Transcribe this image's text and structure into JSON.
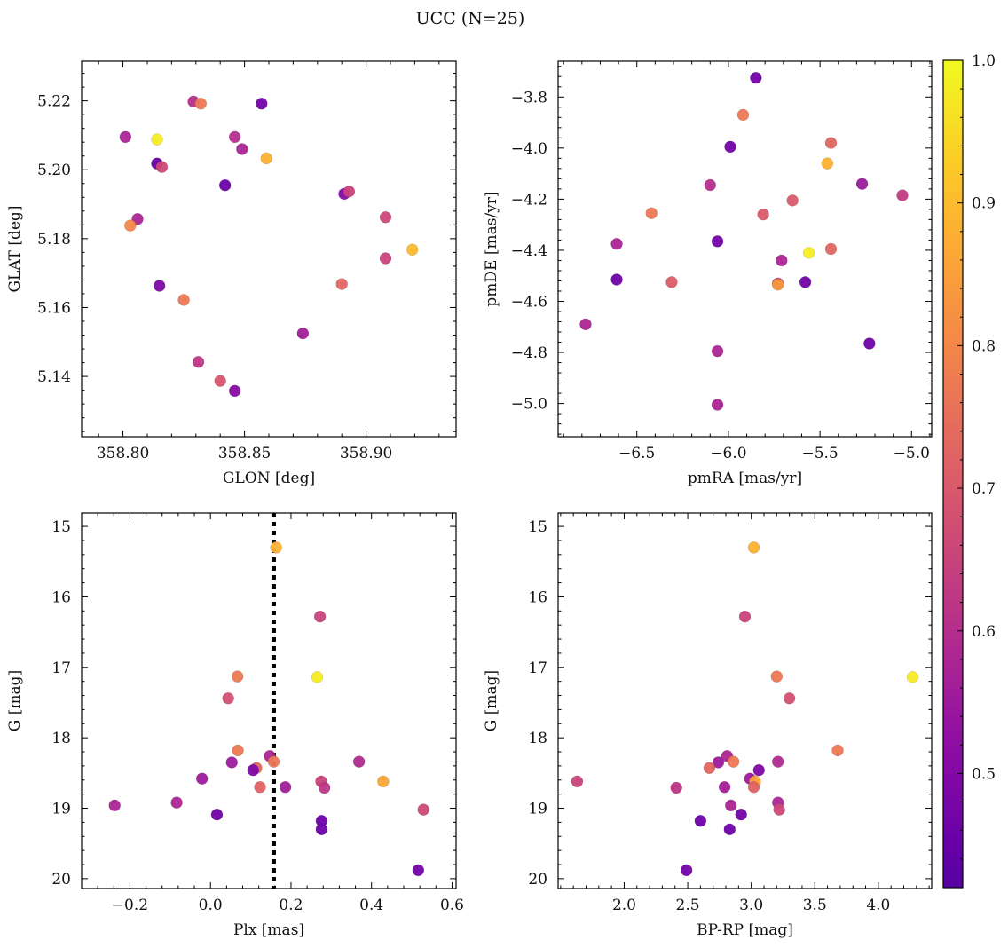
{
  "figure": {
    "title": "UCC (N=25)"
  },
  "chart_data": [
    {
      "type": "scatter",
      "name": "glon-glat",
      "xlabel": "GLON [deg]",
      "ylabel": "GLAT [deg]",
      "xlim": [
        358.783,
        358.937
      ],
      "ylim": [
        5.1225,
        5.2315
      ],
      "xticks": [
        358.8,
        358.85,
        358.9
      ],
      "xtick_labels": [
        "358.80",
        "358.85",
        "358.90"
      ],
      "yticks": [
        5.14,
        5.16,
        5.18,
        5.2,
        5.22
      ],
      "ytick_labels": [
        "5.14",
        "5.16",
        "5.18",
        "5.20",
        "5.22"
      ],
      "invert_y": false,
      "points": [
        {
          "x": 358.801,
          "y": 5.2095,
          "c": 0.58
        },
        {
          "x": 358.814,
          "y": 5.2088,
          "c": 0.98
        },
        {
          "x": 358.814,
          "y": 5.2018,
          "c": 0.45
        },
        {
          "x": 358.816,
          "y": 5.2008,
          "c": 0.66
        },
        {
          "x": 358.829,
          "y": 5.2198,
          "c": 0.6
        },
        {
          "x": 358.832,
          "y": 5.2192,
          "c": 0.77
        },
        {
          "x": 358.846,
          "y": 5.2095,
          "c": 0.6
        },
        {
          "x": 358.849,
          "y": 5.206,
          "c": 0.58
        },
        {
          "x": 358.857,
          "y": 5.2192,
          "c": 0.47
        },
        {
          "x": 358.859,
          "y": 5.2033,
          "c": 0.88
        },
        {
          "x": 358.842,
          "y": 5.1955,
          "c": 0.46
        },
        {
          "x": 358.891,
          "y": 5.193,
          "c": 0.51
        },
        {
          "x": 358.893,
          "y": 5.1937,
          "c": 0.65
        },
        {
          "x": 358.806,
          "y": 5.1857,
          "c": 0.58
        },
        {
          "x": 358.803,
          "y": 5.1838,
          "c": 0.8
        },
        {
          "x": 358.908,
          "y": 5.1862,
          "c": 0.66
        },
        {
          "x": 358.919,
          "y": 5.1768,
          "c": 0.9
        },
        {
          "x": 358.908,
          "y": 5.1743,
          "c": 0.65
        },
        {
          "x": 358.815,
          "y": 5.1663,
          "c": 0.49
        },
        {
          "x": 358.89,
          "y": 5.1668,
          "c": 0.73
        },
        {
          "x": 358.825,
          "y": 5.1622,
          "c": 0.77
        },
        {
          "x": 358.874,
          "y": 5.1525,
          "c": 0.56
        },
        {
          "x": 358.831,
          "y": 5.1442,
          "c": 0.62
        },
        {
          "x": 358.84,
          "y": 5.1387,
          "c": 0.69
        },
        {
          "x": 358.846,
          "y": 5.1358,
          "c": 0.51
        }
      ]
    },
    {
      "type": "scatter",
      "name": "pmra-pmde",
      "xlabel": "pmRA [mas/yr]",
      "ylabel": "pmDE [mas/yr]",
      "xlim": [
        -6.93,
        -4.89
      ],
      "ylim": [
        -5.13,
        -3.66
      ],
      "xticks": [
        -6.5,
        -6.0,
        -5.5,
        -5.0
      ],
      "xtick_labels": [
        "−6.5",
        "−6.0",
        "−5.5",
        "−5.0"
      ],
      "yticks": [
        -5.0,
        -4.8,
        -4.6,
        -4.4,
        -4.2,
        -4.0,
        -3.8
      ],
      "ytick_labels": [
        "−5.0",
        "−4.8",
        "−4.6",
        "−4.4",
        "−4.2",
        "−4.0",
        "−3.8"
      ],
      "invert_y": false,
      "points": [
        {
          "x": -5.85,
          "y": -3.725,
          "c": 0.47
        },
        {
          "x": -5.92,
          "y": -3.87,
          "c": 0.77
        },
        {
          "x": -5.99,
          "y": -3.995,
          "c": 0.47
        },
        {
          "x": -5.44,
          "y": -3.98,
          "c": 0.73
        },
        {
          "x": -5.46,
          "y": -4.06,
          "c": 0.88
        },
        {
          "x": -6.1,
          "y": -4.145,
          "c": 0.6
        },
        {
          "x": -5.27,
          "y": -4.14,
          "c": 0.55
        },
        {
          "x": -5.05,
          "y": -4.185,
          "c": 0.63
        },
        {
          "x": -5.65,
          "y": -4.205,
          "c": 0.7
        },
        {
          "x": -5.81,
          "y": -4.26,
          "c": 0.7
        },
        {
          "x": -6.42,
          "y": -4.255,
          "c": 0.77
        },
        {
          "x": -6.61,
          "y": -4.375,
          "c": 0.58
        },
        {
          "x": -6.06,
          "y": -4.365,
          "c": 0.47
        },
        {
          "x": -5.56,
          "y": -4.41,
          "c": 0.98
        },
        {
          "x": -5.44,
          "y": -4.395,
          "c": 0.73
        },
        {
          "x": -5.71,
          "y": -4.44,
          "c": 0.58
        },
        {
          "x": -6.61,
          "y": -4.515,
          "c": 0.46
        },
        {
          "x": -6.31,
          "y": -4.525,
          "c": 0.71
        },
        {
          "x": -5.73,
          "y": -4.53,
          "c": 0.64
        },
        {
          "x": -5.73,
          "y": -4.535,
          "c": 0.84
        },
        {
          "x": -5.58,
          "y": -4.525,
          "c": 0.47
        },
        {
          "x": -6.78,
          "y": -4.69,
          "c": 0.58
        },
        {
          "x": -5.23,
          "y": -4.765,
          "c": 0.47
        },
        {
          "x": -6.06,
          "y": -4.795,
          "c": 0.58
        },
        {
          "x": -6.06,
          "y": -5.005,
          "c": 0.58
        }
      ]
    },
    {
      "type": "scatter",
      "name": "plx-g",
      "xlabel": "Plx [mas]",
      "ylabel": "G [mag]",
      "xlim": [
        -0.32,
        0.61
      ],
      "ylim": [
        14.81,
        20.14
      ],
      "xticks": [
        -0.2,
        0.0,
        0.2,
        0.4,
        0.6
      ],
      "xtick_labels": [
        "−0.2",
        "0.0",
        "0.2",
        "0.4",
        "0.6"
      ],
      "yticks": [
        15,
        16,
        17,
        18,
        19,
        20
      ],
      "ytick_labels": [
        "15",
        "16",
        "17",
        "18",
        "19",
        "20"
      ],
      "invert_y": true,
      "vline": {
        "x": 0.157,
        "style": "dotted"
      },
      "points": [
        {
          "x": 0.163,
          "y": 15.3,
          "c": 0.88
        },
        {
          "x": 0.272,
          "y": 16.28,
          "c": 0.65
        },
        {
          "x": 0.067,
          "y": 17.13,
          "c": 0.77
        },
        {
          "x": 0.265,
          "y": 17.14,
          "c": 0.98
        },
        {
          "x": 0.044,
          "y": 17.44,
          "c": 0.68
        },
        {
          "x": 0.068,
          "y": 18.18,
          "c": 0.77
        },
        {
          "x": 0.147,
          "y": 18.26,
          "c": 0.58
        },
        {
          "x": 0.157,
          "y": 18.34,
          "c": 0.77
        },
        {
          "x": 0.369,
          "y": 18.34,
          "c": 0.59
        },
        {
          "x": 0.053,
          "y": 18.35,
          "c": 0.55
        },
        {
          "x": 0.114,
          "y": 18.43,
          "c": 0.73
        },
        {
          "x": 0.106,
          "y": 18.46,
          "c": 0.49
        },
        {
          "x": -0.021,
          "y": 18.58,
          "c": 0.55
        },
        {
          "x": 0.429,
          "y": 18.62,
          "c": 0.86
        },
        {
          "x": 0.275,
          "y": 18.62,
          "c": 0.65
        },
        {
          "x": 0.123,
          "y": 18.7,
          "c": 0.72
        },
        {
          "x": 0.186,
          "y": 18.7,
          "c": 0.56
        },
        {
          "x": 0.283,
          "y": 18.71,
          "c": 0.62
        },
        {
          "x": -0.084,
          "y": 18.92,
          "c": 0.58
        },
        {
          "x": -0.238,
          "y": 18.96,
          "c": 0.58
        },
        {
          "x": 0.529,
          "y": 19.02,
          "c": 0.66
        },
        {
          "x": 0.016,
          "y": 19.09,
          "c": 0.47
        },
        {
          "x": 0.276,
          "y": 19.18,
          "c": 0.46
        },
        {
          "x": 0.276,
          "y": 19.3,
          "c": 0.46
        },
        {
          "x": 0.516,
          "y": 19.88,
          "c": 0.47
        }
      ]
    },
    {
      "type": "scatter",
      "name": "bprp-g",
      "xlabel": "BP-RP [mag]",
      "ylabel": "G [mag]",
      "xlim": [
        1.48,
        4.42
      ],
      "ylim": [
        14.81,
        20.14
      ],
      "xticks": [
        2.0,
        2.5,
        3.0,
        3.5,
        4.0
      ],
      "xtick_labels": [
        "2.0",
        "2.5",
        "3.0",
        "3.5",
        "4.0"
      ],
      "yticks": [
        15,
        16,
        17,
        18,
        19,
        20
      ],
      "ytick_labels": [
        "15",
        "16",
        "17",
        "18",
        "19",
        "20"
      ],
      "invert_y": true,
      "points": [
        {
          "x": 3.02,
          "y": 15.3,
          "c": 0.88
        },
        {
          "x": 2.95,
          "y": 16.28,
          "c": 0.65
        },
        {
          "x": 3.2,
          "y": 17.13,
          "c": 0.77
        },
        {
          "x": 4.27,
          "y": 17.14,
          "c": 0.98
        },
        {
          "x": 3.3,
          "y": 17.44,
          "c": 0.68
        },
        {
          "x": 3.68,
          "y": 18.18,
          "c": 0.77
        },
        {
          "x": 2.81,
          "y": 18.26,
          "c": 0.58
        },
        {
          "x": 2.86,
          "y": 18.34,
          "c": 0.77
        },
        {
          "x": 3.21,
          "y": 18.34,
          "c": 0.59
        },
        {
          "x": 2.74,
          "y": 18.35,
          "c": 0.55
        },
        {
          "x": 2.67,
          "y": 18.43,
          "c": 0.73
        },
        {
          "x": 3.06,
          "y": 18.46,
          "c": 0.49
        },
        {
          "x": 2.99,
          "y": 18.58,
          "c": 0.55
        },
        {
          "x": 3.03,
          "y": 18.62,
          "c": 0.86
        },
        {
          "x": 1.63,
          "y": 18.62,
          "c": 0.65
        },
        {
          "x": 3.02,
          "y": 18.7,
          "c": 0.72
        },
        {
          "x": 2.79,
          "y": 18.7,
          "c": 0.56
        },
        {
          "x": 2.41,
          "y": 18.71,
          "c": 0.62
        },
        {
          "x": 3.21,
          "y": 18.92,
          "c": 0.58
        },
        {
          "x": 2.84,
          "y": 18.96,
          "c": 0.58
        },
        {
          "x": 3.22,
          "y": 19.02,
          "c": 0.66
        },
        {
          "x": 2.92,
          "y": 19.09,
          "c": 0.47
        },
        {
          "x": 2.6,
          "y": 19.18,
          "c": 0.46
        },
        {
          "x": 2.83,
          "y": 19.3,
          "c": 0.46
        },
        {
          "x": 2.49,
          "y": 19.88,
          "c": 0.47
        }
      ]
    }
  ],
  "colorbar": {
    "cmap": "plasma",
    "range": [
      0.42,
      1.0
    ],
    "ticks": [
      0.5,
      0.6,
      0.7,
      0.8,
      0.9,
      1.0
    ],
    "tick_labels": [
      "0.5",
      "0.6",
      "0.7",
      "0.8",
      "0.9",
      "1.0"
    ]
  }
}
